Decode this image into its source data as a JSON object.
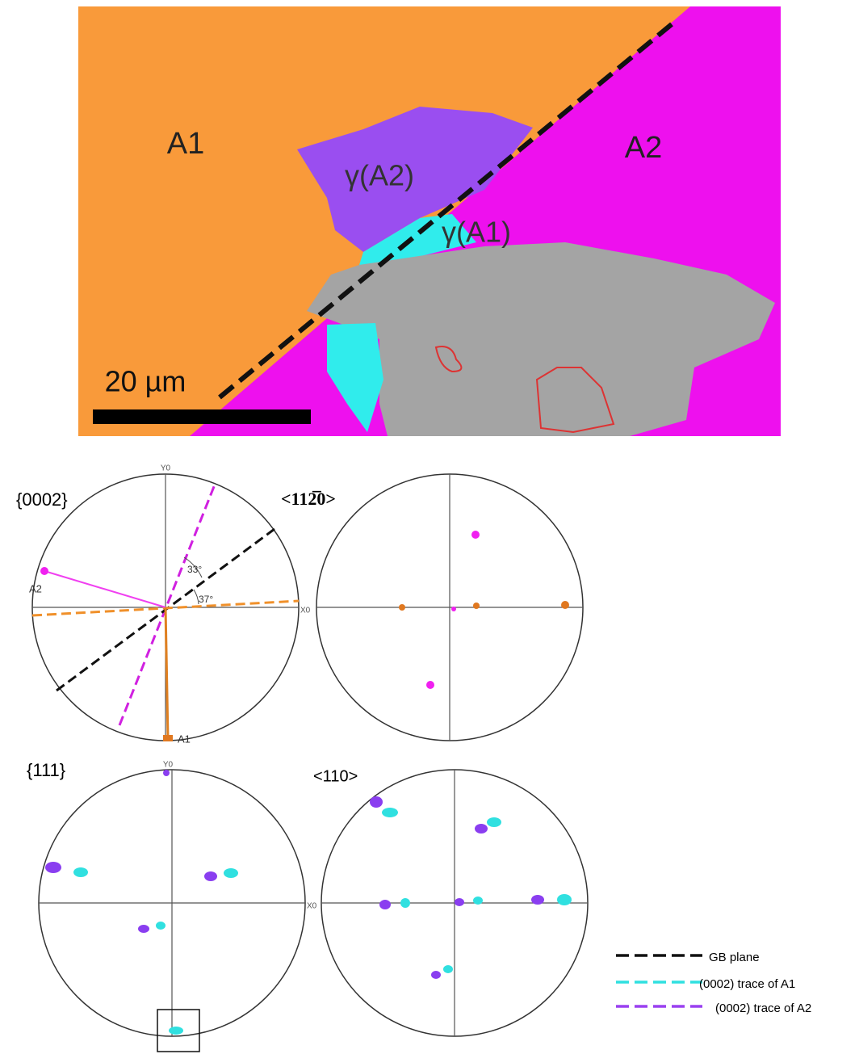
{
  "map": {
    "grain_labels": [
      "A1",
      "A2",
      "γ(A2)",
      "γ(A1)"
    ],
    "scale_bar": "20 µm"
  },
  "pole_figures": [
    {
      "label": "{0002}",
      "y_axis": "Y0",
      "x_axis": "X0",
      "points": [
        "A2",
        "A1"
      ],
      "angles": [
        "33°",
        "37°"
      ]
    },
    {
      "label": "<112̅0>"
    },
    {
      "label": "{111}",
      "y_axis": "Y0",
      "x_axis": "X0"
    },
    {
      "label": "<110>"
    }
  ],
  "legend": [
    "GB plane",
    "(0002) trace of A1",
    "(0002) trace of A2"
  ]
}
